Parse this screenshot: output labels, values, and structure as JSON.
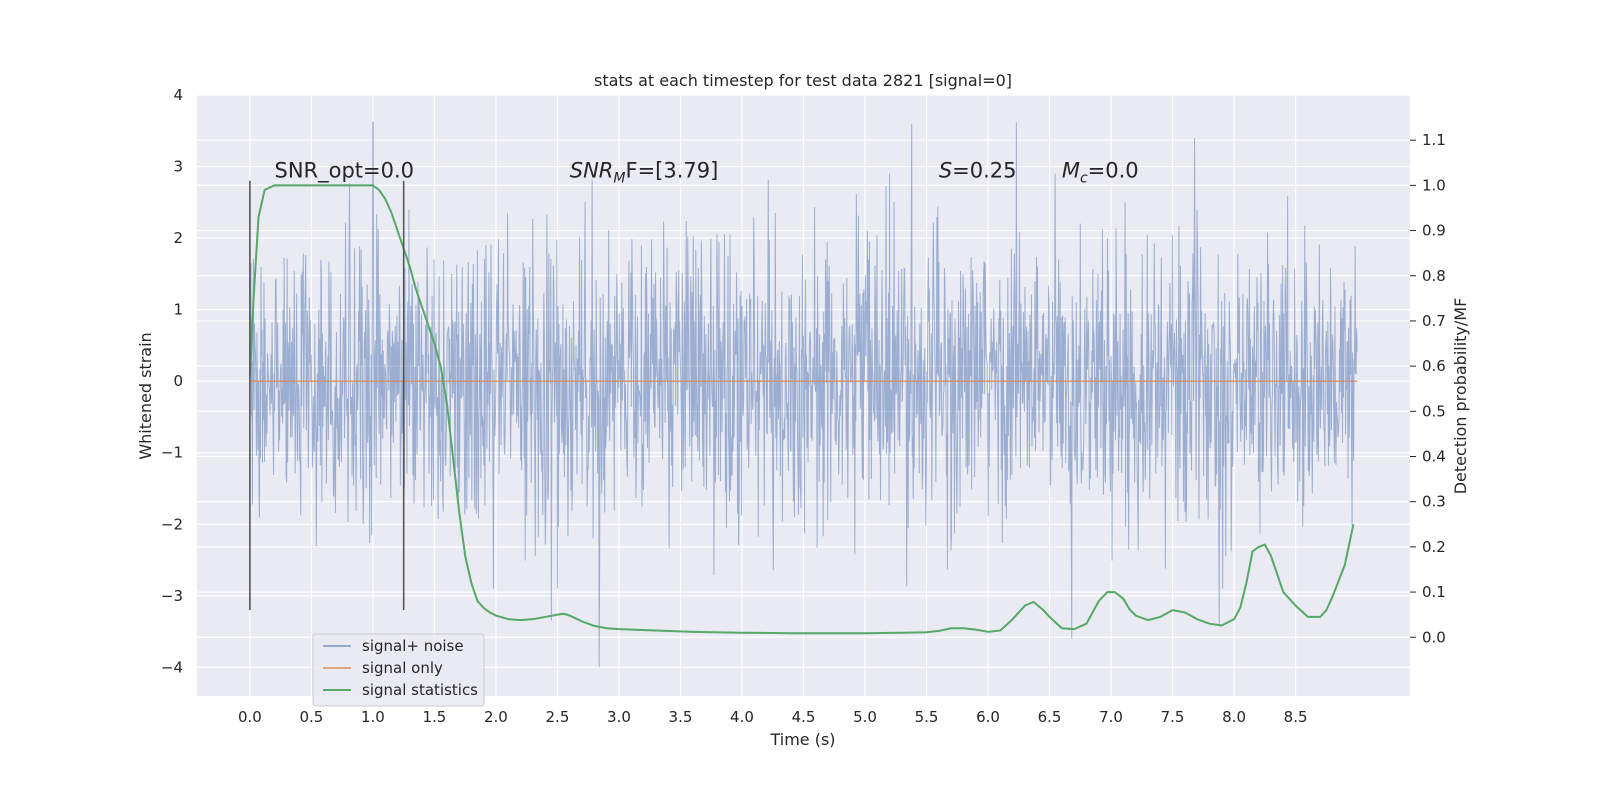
{
  "chart_data": {
    "type": "line",
    "title": "stats at each timestep for test data 2821 [signal=0]",
    "xlabel": "Time (s)",
    "ylabel": "Whitened strain",
    "y2label": "Detection probability/MF",
    "xlim": [
      -0.43,
      9.43
    ],
    "ylim": [
      -4.4,
      4.0
    ],
    "y2lim": [
      -0.13,
      1.2
    ],
    "x_ticks": [
      0.0,
      0.5,
      1.0,
      1.5,
      2.0,
      2.5,
      3.0,
      3.5,
      4.0,
      4.5,
      5.0,
      5.5,
      6.0,
      6.5,
      7.0,
      7.5,
      8.0,
      8.5
    ],
    "x_tick_labels": [
      "0.0",
      "0.5",
      "1.0",
      "1.5",
      "2.0",
      "2.5",
      "3.0",
      "3.5",
      "4.0",
      "4.5",
      "5.0",
      "5.5",
      "6.0",
      "6.5",
      "7.0",
      "7.5",
      "8.0",
      "8.5"
    ],
    "y_ticks": [
      -4,
      -3,
      -2,
      -1,
      0,
      1,
      2,
      3,
      4
    ],
    "y_tick_labels": [
      "−4",
      "−3",
      "−2",
      "−1",
      "0",
      "1",
      "2",
      "3",
      "4"
    ],
    "y2_ticks": [
      0.0,
      0.1,
      0.2,
      0.3,
      0.4,
      0.5,
      0.6,
      0.7,
      0.8,
      0.9,
      1.0,
      1.1
    ],
    "y2_tick_labels": [
      "0.0",
      "0.1",
      "0.2",
      "0.3",
      "0.4",
      "0.5",
      "0.6",
      "0.7",
      "0.8",
      "0.9",
      "1.0",
      "1.1"
    ],
    "grid": true,
    "legend_position": "lower-left",
    "annotations": [
      {
        "text": "SNR_opt=0.0",
        "x": 0.2,
        "y": 2.85
      },
      {
        "text": "SNR",
        "sub": "M",
        "rest": "F=[3.79]",
        "x": 2.6,
        "y": 2.85
      },
      {
        "text": "S",
        "rest": "=0.25",
        "x": 5.6,
        "y": 2.85
      },
      {
        "text": "M",
        "sub": "c",
        "rest": "=0.0",
        "x": 6.6,
        "y": 2.85
      }
    ],
    "vertical_lines": [
      {
        "x": 0.0,
        "ymin": -3.2,
        "ymax": 2.8
      },
      {
        "x": 1.25,
        "ymin": -3.2,
        "ymax": 2.8
      }
    ],
    "series": [
      {
        "name": "signal+ noise",
        "axis": "left",
        "color": "#4c72b0",
        "kind": "noise",
        "x_range": [
          0.0,
          9.0
        ],
        "typical_amplitude": 1.3,
        "extremes": [
          [
            1.0,
            3.62
          ],
          [
            5.38,
            3.6
          ],
          [
            6.23,
            3.62
          ],
          [
            7.68,
            3.4
          ],
          [
            2.84,
            -4.0
          ],
          [
            6.68,
            -3.6
          ],
          [
            7.88,
            -3.4
          ],
          [
            2.45,
            -3.35
          ]
        ]
      },
      {
        "name": "signal only",
        "axis": "left",
        "color": "#dd8452",
        "x": [
          0.0,
          9.0
        ],
        "y": [
          0.0,
          0.0
        ]
      },
      {
        "name": "signal statistics",
        "axis": "right",
        "color": "#55a868",
        "x": [
          0.0,
          0.03,
          0.07,
          0.12,
          0.2,
          0.3,
          0.5,
          0.7,
          0.9,
          1.0,
          1.05,
          1.1,
          1.15,
          1.2,
          1.25,
          1.3,
          1.35,
          1.4,
          1.45,
          1.5,
          1.55,
          1.6,
          1.65,
          1.7,
          1.75,
          1.8,
          1.85,
          1.9,
          1.95,
          2.0,
          2.1,
          2.2,
          2.3,
          2.4,
          2.5,
          2.55,
          2.6,
          2.7,
          2.8,
          2.9,
          3.0,
          3.3,
          3.6,
          4.0,
          4.4,
          4.8,
          5.0,
          5.3,
          5.5,
          5.6,
          5.7,
          5.8,
          5.9,
          6.0,
          6.1,
          6.2,
          6.3,
          6.37,
          6.45,
          6.5,
          6.6,
          6.7,
          6.8,
          6.9,
          6.97,
          7.03,
          7.1,
          7.15,
          7.2,
          7.3,
          7.4,
          7.5,
          7.6,
          7.7,
          7.8,
          7.9,
          8.0,
          8.05,
          8.1,
          8.15,
          8.2,
          8.25,
          8.3,
          8.4,
          8.5,
          8.6,
          8.7,
          8.75,
          8.8,
          8.9,
          8.97
        ],
        "y": [
          0.58,
          0.75,
          0.93,
          0.99,
          1.0,
          1.0,
          1.0,
          1.0,
          1.0,
          1.0,
          0.99,
          0.97,
          0.94,
          0.9,
          0.86,
          0.82,
          0.77,
          0.73,
          0.69,
          0.65,
          0.6,
          0.52,
          0.4,
          0.28,
          0.18,
          0.12,
          0.08,
          0.065,
          0.055,
          0.048,
          0.04,
          0.038,
          0.04,
          0.045,
          0.05,
          0.052,
          0.048,
          0.035,
          0.025,
          0.02,
          0.018,
          0.015,
          0.012,
          0.01,
          0.009,
          0.009,
          0.009,
          0.01,
          0.011,
          0.014,
          0.02,
          0.02,
          0.017,
          0.012,
          0.015,
          0.04,
          0.07,
          0.078,
          0.06,
          0.045,
          0.02,
          0.018,
          0.03,
          0.08,
          0.1,
          0.1,
          0.085,
          0.062,
          0.048,
          0.038,
          0.045,
          0.06,
          0.055,
          0.04,
          0.03,
          0.026,
          0.04,
          0.065,
          0.12,
          0.19,
          0.2,
          0.205,
          0.18,
          0.1,
          0.07,
          0.045,
          0.045,
          0.06,
          0.09,
          0.16,
          0.25
        ]
      }
    ]
  }
}
